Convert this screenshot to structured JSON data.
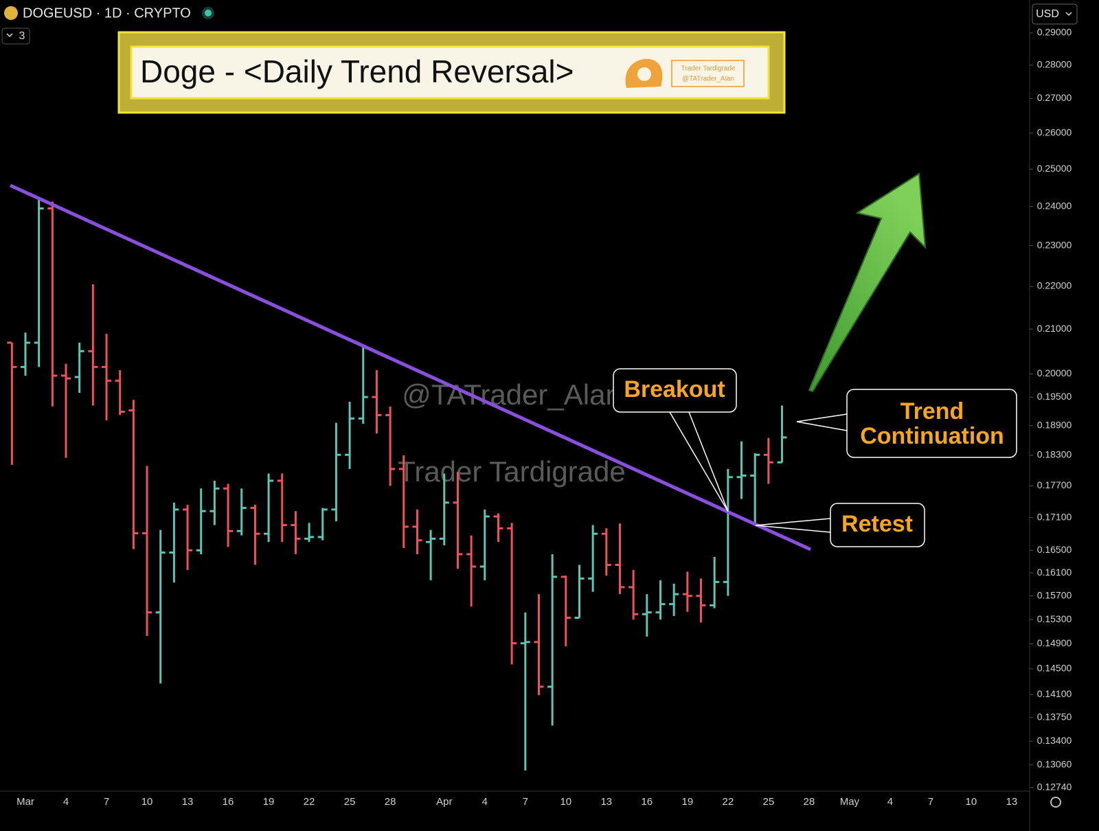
{
  "header": {
    "symbol": "DOGEUSD · 1D · CRYPTO",
    "indicator_count": "3",
    "currency": "USD"
  },
  "branding": {
    "logo_lines": [
      "Trader Tardigrade",
      "@TATrader_Alan"
    ]
  },
  "chart_data": {
    "type": "ohlc",
    "title": "Doge - <Daily Trend Reversal>",
    "log_scale": true,
    "up_color": "#5ec4b3",
    "down_color": "#f0525a",
    "trendline_color": "#8b4fe0",
    "watermarks": [
      "@TATrader_Alan",
      "Trader Tardigrade"
    ],
    "annotations": [
      "Breakout",
      "Trend Continuation",
      "Retest"
    ],
    "categories": [
      null,
      "Mar",
      null,
      null,
      "4",
      null,
      null,
      "7",
      null,
      null,
      "10",
      null,
      null,
      "13",
      null,
      null,
      "16",
      null,
      null,
      "19",
      null,
      null,
      "22",
      null,
      null,
      "25",
      null,
      null,
      "28",
      null,
      null,
      null,
      "Apr",
      null,
      null,
      "4",
      null,
      null,
      "7",
      null,
      null,
      "10",
      null,
      null,
      "13",
      null,
      null,
      "16",
      null,
      null,
      "19",
      null,
      null,
      "22",
      null,
      null,
      "25",
      null,
      null,
      "28",
      null,
      null,
      "May",
      null,
      null,
      "4",
      null,
      null,
      "7",
      null,
      null,
      "10",
      null,
      null,
      "13"
    ],
    "open": [
      0.2069,
      0.2015,
      0.2069,
      0.2395,
      0.1996,
      0.1993,
      0.205,
      0.2015,
      0.1985,
      0.1922,
      0.1681,
      0.1542,
      0.1646,
      0.1725,
      0.165,
      0.1722,
      0.1765,
      0.1685,
      0.1728,
      0.168,
      0.178,
      0.1696,
      0.1671,
      0.1674,
      0.1725,
      0.1831,
      0.1905,
      0.195,
      0.1912,
      0.1803,
      0.1693,
      0.1665,
      0.1671,
      0.1738,
      0.1643,
      0.1621,
      0.1712,
      0.169,
      0.1491,
      0.1493,
      0.1422,
      0.1603,
      0.1533,
      0.16,
      0.168,
      0.1624,
      0.1585,
      0.1539,
      0.1542,
      0.1556,
      0.1573,
      0.157,
      0.1554,
      0.1594,
      0.1787,
      0.179,
      0.1831,
      0.1816,
      null,
      null,
      null,
      null,
      null,
      null,
      null,
      null,
      null,
      null,
      null,
      null,
      null,
      null,
      null,
      null,
      null
    ],
    "high": [
      0.2069,
      0.2092,
      0.2425,
      0.2413,
      0.2022,
      0.2069,
      0.2205,
      0.2089,
      0.2008,
      0.1944,
      0.1809,
      0.1687,
      0.1738,
      0.1734,
      0.1765,
      0.178,
      0.1774,
      0.1765,
      0.1734,
      0.1794,
      0.1794,
      0.1722,
      0.17,
      0.1728,
      0.1896,
      0.194,
      0.2064,
      0.2008,
      0.193,
      0.183,
      0.1725,
      0.1687,
      0.1794,
      0.1797,
      0.1677,
      0.1725,
      0.1718,
      0.17,
      0.1542,
      0.1573,
      0.1643,
      0.1605,
      0.1624,
      0.1696,
      0.169,
      0.1699,
      0.1615,
      0.1573,
      0.1597,
      0.1591,
      0.1612,
      0.16,
      0.1638,
      0.1803,
      0.1858,
      0.1834,
      0.1865,
      0.1932,
      null,
      null,
      null,
      null,
      null,
      null,
      null,
      null,
      null,
      null,
      null,
      null,
      null,
      null,
      null,
      null,
      null
    ],
    "low": [
      0.1811,
      0.1996,
      0.2015,
      0.193,
      0.1825,
      0.1959,
      0.1932,
      0.1901,
      0.1912,
      0.1652,
      0.1503,
      0.1427,
      0.1593,
      0.1615,
      0.1643,
      0.1696,
      0.1656,
      0.1677,
      0.1624,
      0.1665,
      0.1665,
      0.1643,
      0.1665,
      0.1668,
      0.1703,
      0.1803,
      0.1894,
      0.1874,
      0.177,
      0.1654,
      0.1643,
      0.1597,
      0.1659,
      0.1617,
      0.1552,
      0.1597,
      0.1665,
      0.1457,
      0.1298,
      0.1409,
      0.1363,
      0.1486,
      0.1533,
      0.1577,
      0.1605,
      0.1573,
      0.153,
      0.1502,
      0.153,
      0.1536,
      0.1543,
      0.1525,
      0.1549,
      0.157,
      0.1745,
      0.1696,
      0.1774,
      0.1816,
      null,
      null,
      null,
      null,
      null,
      null,
      null,
      null,
      null,
      null,
      null,
      null,
      null,
      null,
      null,
      null,
      null
    ],
    "close": [
      0.2015,
      0.2069,
      0.2395,
      0.1996,
      0.199,
      0.205,
      0.2015,
      0.1985,
      0.1919,
      0.1681,
      0.1542,
      0.1646,
      0.1725,
      0.165,
      0.1722,
      0.1765,
      0.1685,
      0.1728,
      0.168,
      0.178,
      0.1696,
      0.1671,
      0.1674,
      0.1725,
      0.1831,
      0.1905,
      0.195,
      0.1912,
      0.1803,
      0.1693,
      0.1668,
      0.1671,
      0.1738,
      0.1643,
      0.1621,
      0.1712,
      0.169,
      0.1491,
      0.1493,
      0.1422,
      0.1603,
      0.1533,
      0.16,
      0.168,
      0.1624,
      0.1585,
      0.1539,
      0.1542,
      0.1556,
      0.1573,
      0.157,
      0.1554,
      0.1594,
      0.1787,
      0.179,
      0.1831,
      0.1816,
      0.1866,
      null,
      null,
      null,
      null,
      null,
      null,
      null,
      null,
      null,
      null,
      null,
      null,
      null,
      null,
      null,
      null,
      null
    ],
    "ylim": [
      0.1269,
      0.3006
    ],
    "yticks": [
      {
        "value": 0.29,
        "label": "0.29000"
      },
      {
        "value": 0.28,
        "label": "0.28000"
      },
      {
        "value": 0.27,
        "label": "0.27000"
      },
      {
        "value": 0.26,
        "label": "0.26000"
      },
      {
        "value": 0.25,
        "label": "0.25000"
      },
      {
        "value": 0.24,
        "label": "0.24000"
      },
      {
        "value": 0.23,
        "label": "0.23000"
      },
      {
        "value": 0.22,
        "label": "0.22000"
      },
      {
        "value": 0.21,
        "label": "0.21000"
      },
      {
        "value": 0.2,
        "label": "0.20000"
      },
      {
        "value": 0.195,
        "label": "0.19500"
      },
      {
        "value": 0.189,
        "label": "0.18900"
      },
      {
        "value": 0.183,
        "label": "0.18300"
      },
      {
        "value": 0.177,
        "label": "0.17700"
      },
      {
        "value": 0.171,
        "label": "0.17100"
      },
      {
        "value": 0.165,
        "label": "0.16500"
      },
      {
        "value": 0.161,
        "label": "0.16100"
      },
      {
        "value": 0.157,
        "label": "0.15700"
      },
      {
        "value": 0.153,
        "label": "0.15300"
      },
      {
        "value": 0.149,
        "label": "0.14900"
      },
      {
        "value": 0.145,
        "label": "0.14500"
      },
      {
        "value": 0.141,
        "label": "0.14100"
      },
      {
        "value": 0.1375,
        "label": "0.13750"
      },
      {
        "value": 0.134,
        "label": "0.13400"
      },
      {
        "value": 0.1306,
        "label": "0.13060"
      },
      {
        "value": 0.1274,
        "label": "0.12740"
      }
    ]
  }
}
